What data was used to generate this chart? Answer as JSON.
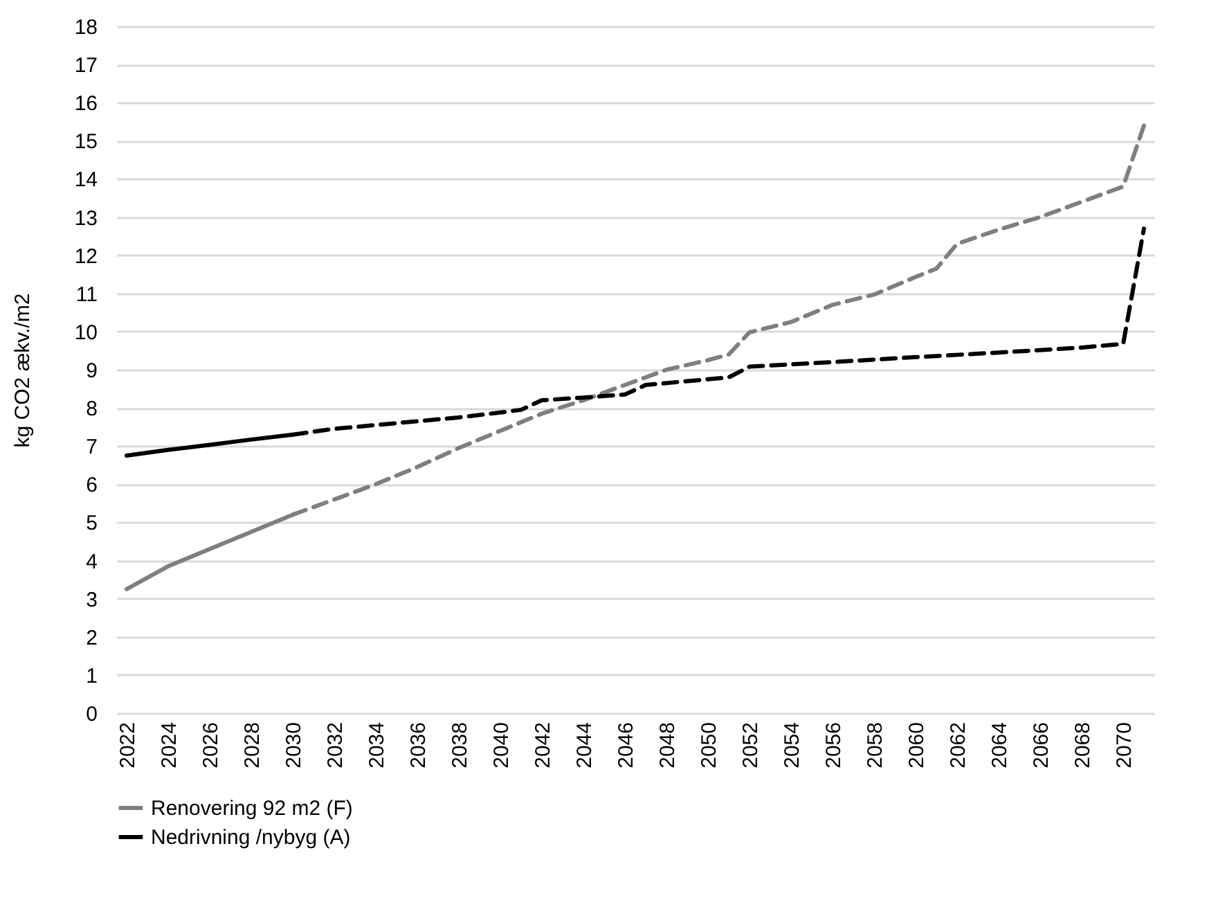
{
  "chart_data": {
    "type": "line",
    "ylabel": "kg CO2 ækv./m2",
    "xlim": [
      2021.5,
      2071.5
    ],
    "xticks": [
      2022,
      2024,
      2026,
      2028,
      2030,
      2032,
      2034,
      2036,
      2038,
      2040,
      2042,
      2044,
      2046,
      2048,
      2050,
      2052,
      2054,
      2056,
      2058,
      2060,
      2062,
      2064,
      2066,
      2068,
      2070
    ],
    "ylim": [
      0,
      18
    ],
    "yticks": [
      0,
      1,
      2,
      3,
      4,
      5,
      6,
      7,
      8,
      9,
      10,
      11,
      12,
      13,
      14,
      15,
      16,
      17,
      18
    ],
    "grid": "y",
    "legend": "bottom",
    "marker": "none",
    "series": [
      {
        "name": "Renovering 92 m2 (F)",
        "color": "#7f7f7f",
        "line_style": "solid",
        "x": [
          2022,
          2024,
          2026,
          2028,
          2030
        ],
        "values": [
          3.25,
          3.85,
          4.3,
          4.75,
          5.2
        ]
      },
      {
        "color": "#7f7f7f",
        "line_style": "dashed",
        "x": [
          2030,
          2032,
          2034,
          2036,
          2038,
          2040,
          2042,
          2044,
          2046,
          2048,
          2050,
          2051,
          2052,
          2054,
          2056,
          2058,
          2060,
          2061,
          2062,
          2064,
          2066,
          2068,
          2070,
          2071
        ],
        "values": [
          5.2,
          5.6,
          6.0,
          6.45,
          6.95,
          7.4,
          7.85,
          8.2,
          8.6,
          9.0,
          9.25,
          9.4,
          9.98,
          10.25,
          10.7,
          10.97,
          11.43,
          11.65,
          12.3,
          12.67,
          13.0,
          13.4,
          13.8,
          15.4
        ]
      },
      {
        "name": "Nedrivning /nybyg (A)",
        "color": "#000000",
        "line_style": "solid",
        "x": [
          2022,
          2024,
          2026,
          2028,
          2030
        ],
        "values": [
          6.75,
          6.9,
          7.03,
          7.17,
          7.3
        ]
      },
      {
        "color": "#000000",
        "line_style": "dashed",
        "x": [
          2030,
          2032,
          2034,
          2036,
          2038,
          2040,
          2041,
          2042,
          2044,
          2046,
          2047,
          2048,
          2050,
          2051,
          2052,
          2056,
          2060,
          2064,
          2068,
          2070,
          2071
        ],
        "values": [
          7.3,
          7.45,
          7.55,
          7.65,
          7.75,
          7.88,
          7.95,
          8.2,
          8.27,
          8.35,
          8.6,
          8.65,
          8.75,
          8.8,
          9.08,
          9.2,
          9.33,
          9.45,
          9.58,
          9.68,
          12.7
        ]
      }
    ]
  }
}
